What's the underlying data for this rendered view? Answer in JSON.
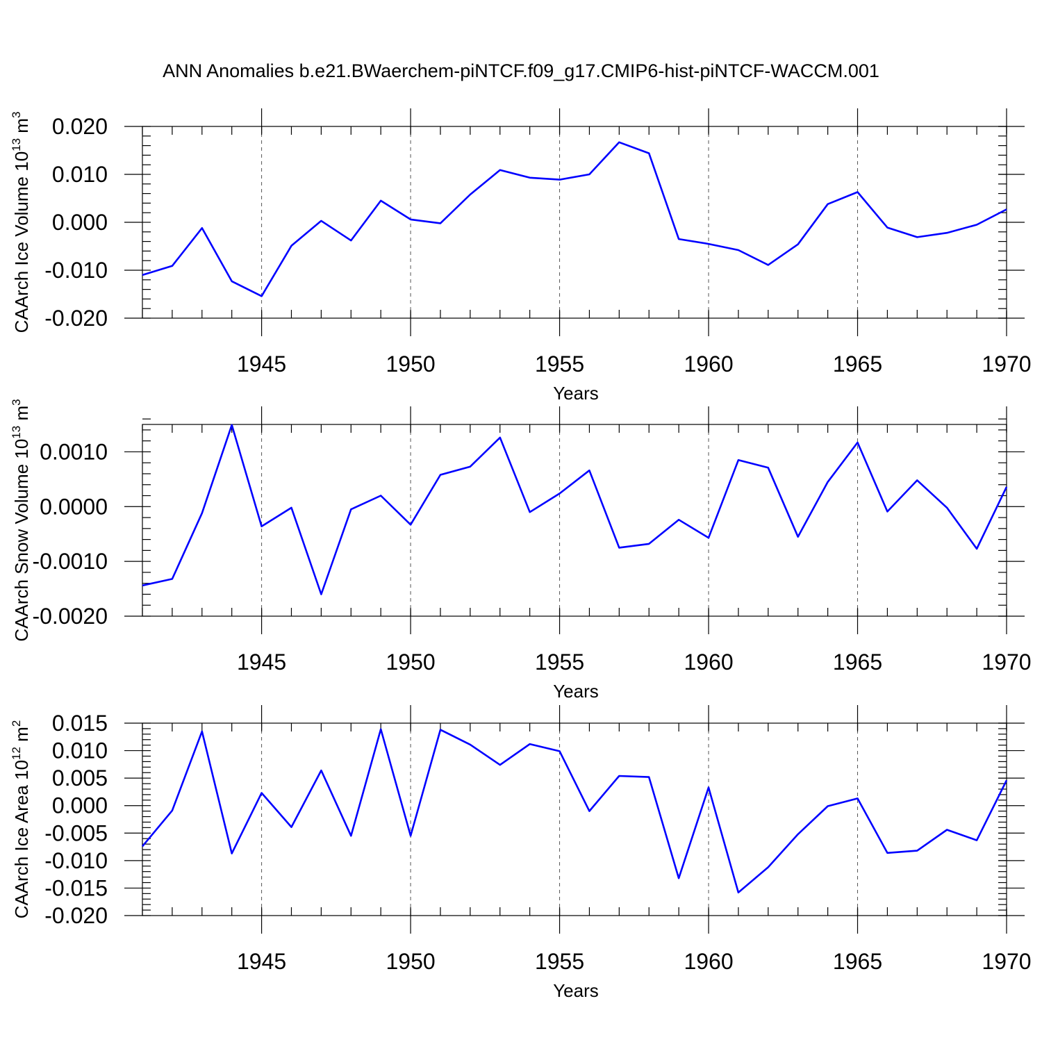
{
  "title": "ANN Anomalies b.e21.BWaerchem-piNTCF.f09_g17.CMIP6-hist-piNTCF-WACCM.001",
  "chart_data": [
    {
      "type": "line",
      "ylabel": "CAArch Ice Volume 10",
      "ylabel_exp": "13",
      "ylabel_unit": " m",
      "ylabel_unit_exp": "3",
      "xlabel": "Years",
      "xlim": [
        1941,
        1970
      ],
      "ylim": [
        -0.02,
        0.02
      ],
      "yticks": [
        -0.02,
        -0.01,
        0.0,
        0.01,
        0.02
      ],
      "ytick_labels": [
        "-0.020",
        "-0.010",
        "0.000",
        "0.010",
        "0.020"
      ],
      "yminor": 0.002,
      "xticks": [
        1945,
        1950,
        1955,
        1960,
        1965,
        1970
      ],
      "xtick_labels": [
        "1945",
        "1950",
        "1955",
        "1960",
        "1965",
        "1970"
      ],
      "grid_x": [
        1945,
        1950,
        1955,
        1960,
        1965
      ],
      "x": [
        1941,
        1942,
        1943,
        1944,
        1945,
        1946,
        1947,
        1948,
        1949,
        1950,
        1951,
        1952,
        1953,
        1954,
        1955,
        1956,
        1957,
        1958,
        1959,
        1960,
        1961,
        1962,
        1963,
        1964,
        1965,
        1966,
        1967,
        1968,
        1969,
        1970
      ],
      "series": [
        {
          "name": "Ice Volume",
          "color": "#0000ff",
          "values": [
            -0.011,
            -0.0091,
            -0.0012,
            -0.0123,
            -0.0154,
            -0.0049,
            0.0003,
            -0.0038,
            0.0045,
            0.0006,
            -0.0002,
            0.0058,
            0.0109,
            0.0093,
            0.0089,
            0.01,
            0.0167,
            0.0144,
            -0.0035,
            -0.0045,
            -0.0058,
            -0.0089,
            -0.0046,
            0.0038,
            0.0063,
            -0.0011,
            -0.0031,
            -0.0022,
            -0.0005,
            0.0027
          ]
        }
      ]
    },
    {
      "type": "line",
      "ylabel": "CAArch Snow Volume 10",
      "ylabel_exp": "13",
      "ylabel_unit": " m",
      "ylabel_unit_exp": "3",
      "xlabel": "Years",
      "xlim": [
        1941,
        1970
      ],
      "ylim": [
        -0.002,
        0.0015
      ],
      "yticks": [
        -0.002,
        -0.001,
        0.0,
        0.001
      ],
      "ytick_labels": [
        "-0.0020",
        "-0.0010",
        "0.0000",
        "0.0010"
      ],
      "yminor": 0.0002,
      "xticks": [
        1945,
        1950,
        1955,
        1960,
        1965,
        1970
      ],
      "xtick_labels": [
        "1945",
        "1950",
        "1955",
        "1960",
        "1965",
        "1970"
      ],
      "grid_x": [
        1945,
        1950,
        1955,
        1960,
        1965
      ],
      "x": [
        1941,
        1942,
        1943,
        1944,
        1945,
        1946,
        1947,
        1948,
        1949,
        1950,
        1951,
        1952,
        1953,
        1954,
        1955,
        1956,
        1957,
        1958,
        1959,
        1960,
        1961,
        1962,
        1963,
        1964,
        1965,
        1966,
        1967,
        1968,
        1969,
        1970
      ],
      "series": [
        {
          "name": "Snow Volume",
          "color": "#0000ff",
          "values": [
            -0.00144,
            -0.00132,
            -0.00012,
            0.00149,
            -0.00036,
            -2e-05,
            -0.0016,
            -5e-05,
            0.0002,
            -0.00033,
            0.00058,
            0.00073,
            0.00126,
            -0.0001,
            0.00024,
            0.00066,
            -0.00075,
            -0.00068,
            -0.00024,
            -0.00057,
            0.00085,
            0.00071,
            -0.00055,
            0.00045,
            0.00117,
            -9e-05,
            0.00048,
            -2e-05,
            -0.00077,
            0.00036
          ]
        }
      ]
    },
    {
      "type": "line",
      "ylabel": "CAArch Ice Area 10",
      "ylabel_exp": "12",
      "ylabel_unit": " m",
      "ylabel_unit_exp": "2",
      "xlabel": "Years",
      "xlim": [
        1941,
        1970
      ],
      "ylim": [
        -0.02,
        0.015
      ],
      "yticks": [
        -0.02,
        -0.015,
        -0.01,
        -0.005,
        0.0,
        0.005,
        0.01,
        0.015
      ],
      "ytick_labels": [
        "-0.020",
        "-0.015",
        "-0.010",
        "-0.005",
        "0.000",
        "0.005",
        "0.010",
        "0.015"
      ],
      "yminor": 0.001,
      "xticks": [
        1945,
        1950,
        1955,
        1960,
        1965,
        1970
      ],
      "xtick_labels": [
        "1945",
        "1950",
        "1955",
        "1960",
        "1965",
        "1970"
      ],
      "grid_x": [
        1945,
        1950,
        1955,
        1960,
        1965
      ],
      "x": [
        1941,
        1942,
        1943,
        1944,
        1945,
        1946,
        1947,
        1948,
        1949,
        1950,
        1951,
        1952,
        1953,
        1954,
        1955,
        1956,
        1957,
        1958,
        1959,
        1960,
        1961,
        1962,
        1963,
        1964,
        1965,
        1966,
        1967,
        1968,
        1969,
        1970
      ],
      "series": [
        {
          "name": "Ice Area",
          "color": "#0000ff",
          "values": [
            -0.0074,
            -0.0009,
            0.0135,
            -0.0087,
            0.0023,
            -0.0039,
            0.0064,
            -0.0055,
            0.0139,
            -0.0055,
            0.0138,
            0.0111,
            0.0074,
            0.0112,
            0.0099,
            -0.001,
            0.0054,
            0.0052,
            -0.0132,
            0.0033,
            -0.0158,
            -0.0112,
            -0.0052,
            -0.0001,
            0.0013,
            -0.0086,
            -0.0082,
            -0.0044,
            -0.0063,
            0.0046
          ]
        }
      ]
    }
  ]
}
